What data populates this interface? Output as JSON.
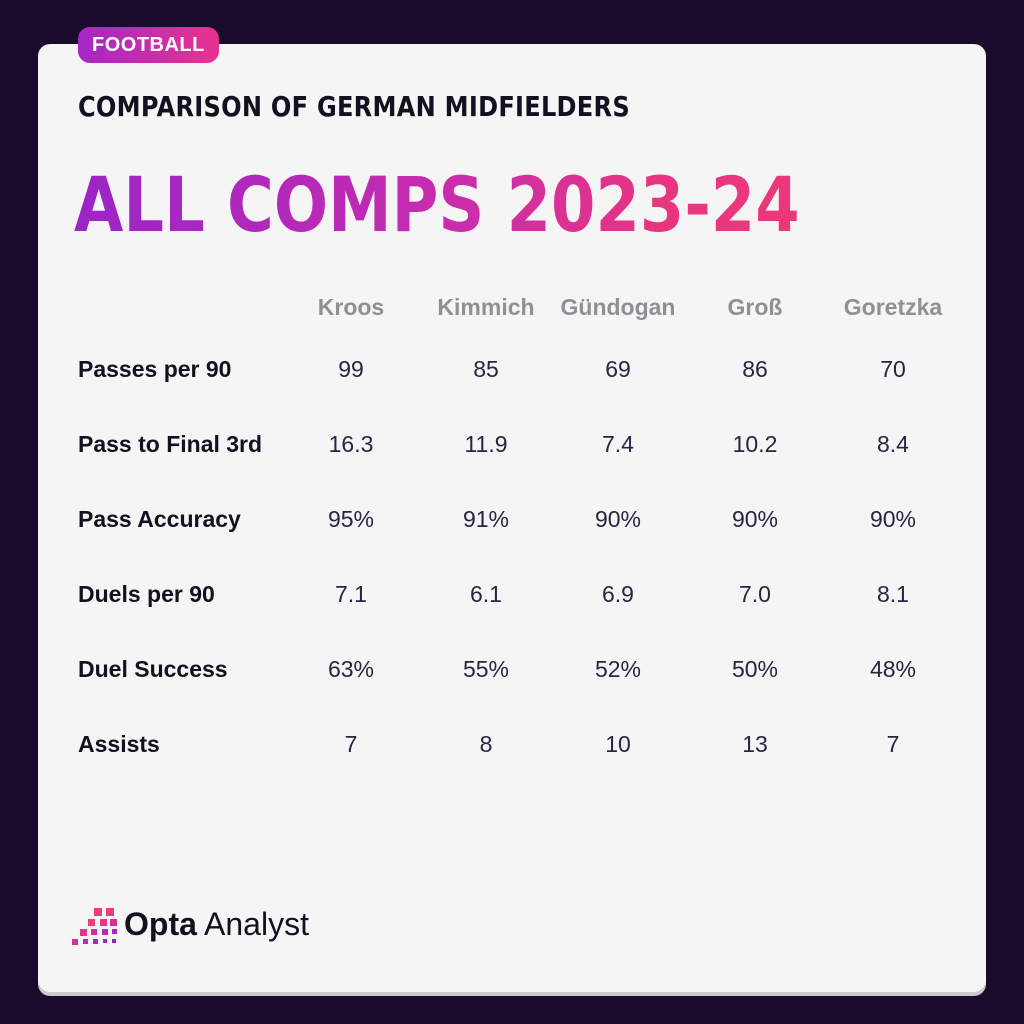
{
  "tag": "FOOTBALL",
  "subtitle": "COMPARISON OF GERMAN MIDFIELDERS",
  "headline": "ALL COMPS 2023-24",
  "brand": {
    "name_bold": "Opta",
    "name_light": "Analyst"
  },
  "colors": {
    "background": "#1a0a2b",
    "card": "#f5f5f5",
    "accent_start": "#9a25c7",
    "accent_end": "#ee3b7a"
  },
  "chart_data": {
    "type": "table",
    "columns": [
      "Kroos",
      "Kimmich",
      "Gündogan",
      "Groß",
      "Goretzka"
    ],
    "rows": [
      {
        "label": "Passes per 90",
        "values": [
          "99",
          "85",
          "69",
          "86",
          "70"
        ]
      },
      {
        "label": "Pass to Final 3rd",
        "values": [
          "16.3",
          "11.9",
          "7.4",
          "10.2",
          "8.4"
        ]
      },
      {
        "label": "Pass Accuracy",
        "values": [
          "95%",
          "91%",
          "90%",
          "90%",
          "90%"
        ]
      },
      {
        "label": "Duels per 90",
        "values": [
          "7.1",
          "6.1",
          "6.9",
          "7.0",
          "8.1"
        ]
      },
      {
        "label": "Duel Success",
        "values": [
          "63%",
          "55%",
          "52%",
          "50%",
          "48%"
        ]
      },
      {
        "label": "Assists",
        "values": [
          "7",
          "8",
          "10",
          "13",
          "7"
        ]
      }
    ]
  }
}
